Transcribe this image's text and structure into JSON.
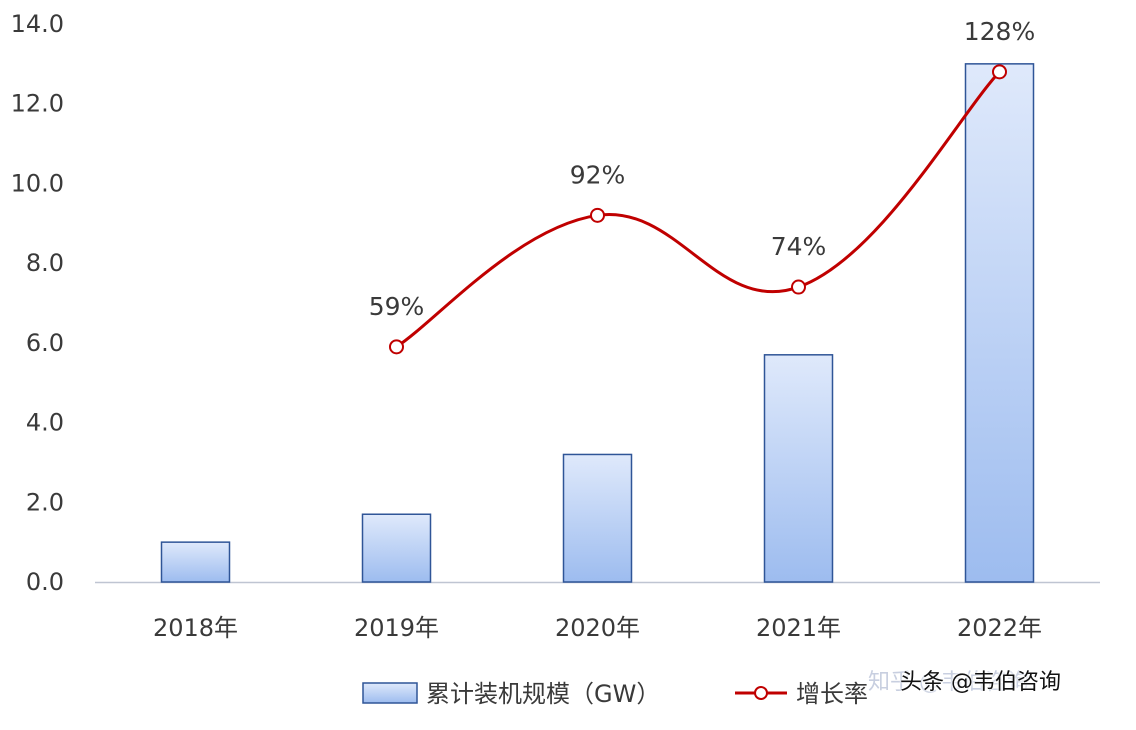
{
  "chart_data": {
    "type": "bar",
    "categories": [
      "2018年",
      "2019年",
      "2020年",
      "2021年",
      "2022年"
    ],
    "series": [
      {
        "name": "累计装机规模（GW）",
        "type": "bar",
        "values": [
          1.0,
          1.7,
          3.2,
          5.7,
          13.0
        ]
      },
      {
        "name": "增长率",
        "type": "line",
        "values": [
          null,
          59,
          92,
          74,
          128
        ],
        "labels": [
          "",
          "59%",
          "92%",
          "74%",
          "128%"
        ]
      }
    ],
    "ylim": [
      0,
      14
    ],
    "yticks": [
      "0.0",
      "2.0",
      "4.0",
      "6.0",
      "8.0",
      "10.0",
      "12.0",
      "14.0"
    ],
    "grid": false,
    "legend_position": "bottom",
    "colors": {
      "bar_fill_top": "#dfe9fb",
      "bar_fill_bottom": "#9dbcef",
      "bar_stroke": "#2f5597",
      "line": "#c00000",
      "marker_fill": "#ffffff"
    }
  },
  "watermark": {
    "text": "头条 @韦伯咨询",
    "ghost": "知乎 @韦伯咨询"
  }
}
